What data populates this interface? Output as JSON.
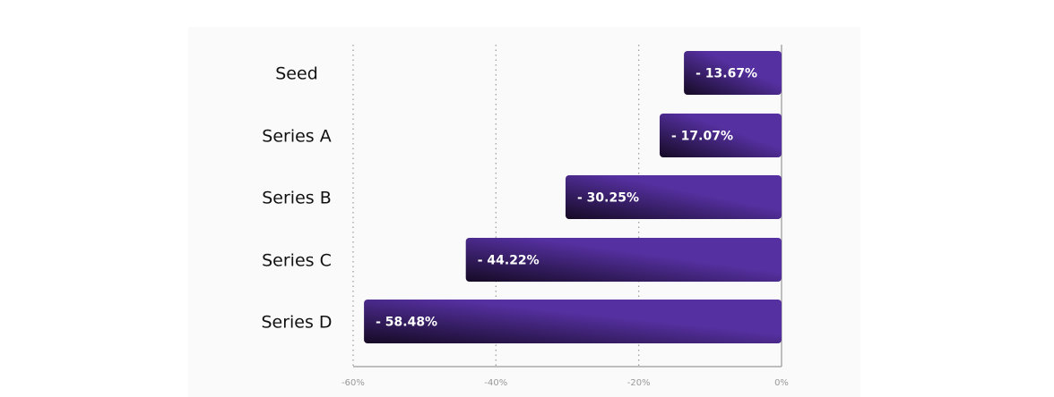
{
  "chart_data": {
    "type": "bar",
    "orientation": "horizontal",
    "categories": [
      "Seed",
      "Series A",
      "Series B",
      "Series C",
      "Series D"
    ],
    "values": [
      -13.67,
      -17.07,
      -30.25,
      -44.22,
      -58.48
    ],
    "value_labels": [
      "- 13.67%",
      "- 17.07%",
      "- 30.25%",
      "- 44.22%",
      "- 58.48%"
    ],
    "xticks": [
      -60,
      -40,
      -20,
      0
    ],
    "xtick_labels": [
      "-60%",
      "-40%",
      "-20%",
      "0%"
    ],
    "xlim": [
      -60,
      0
    ],
    "title": "",
    "xlabel": "",
    "ylabel": "",
    "grid": "vertical dotted",
    "colors": {
      "bar_start": "#150a24",
      "bar_end": "#5530a0",
      "grid": "#999999",
      "axis": "#aaaaaa"
    }
  }
}
